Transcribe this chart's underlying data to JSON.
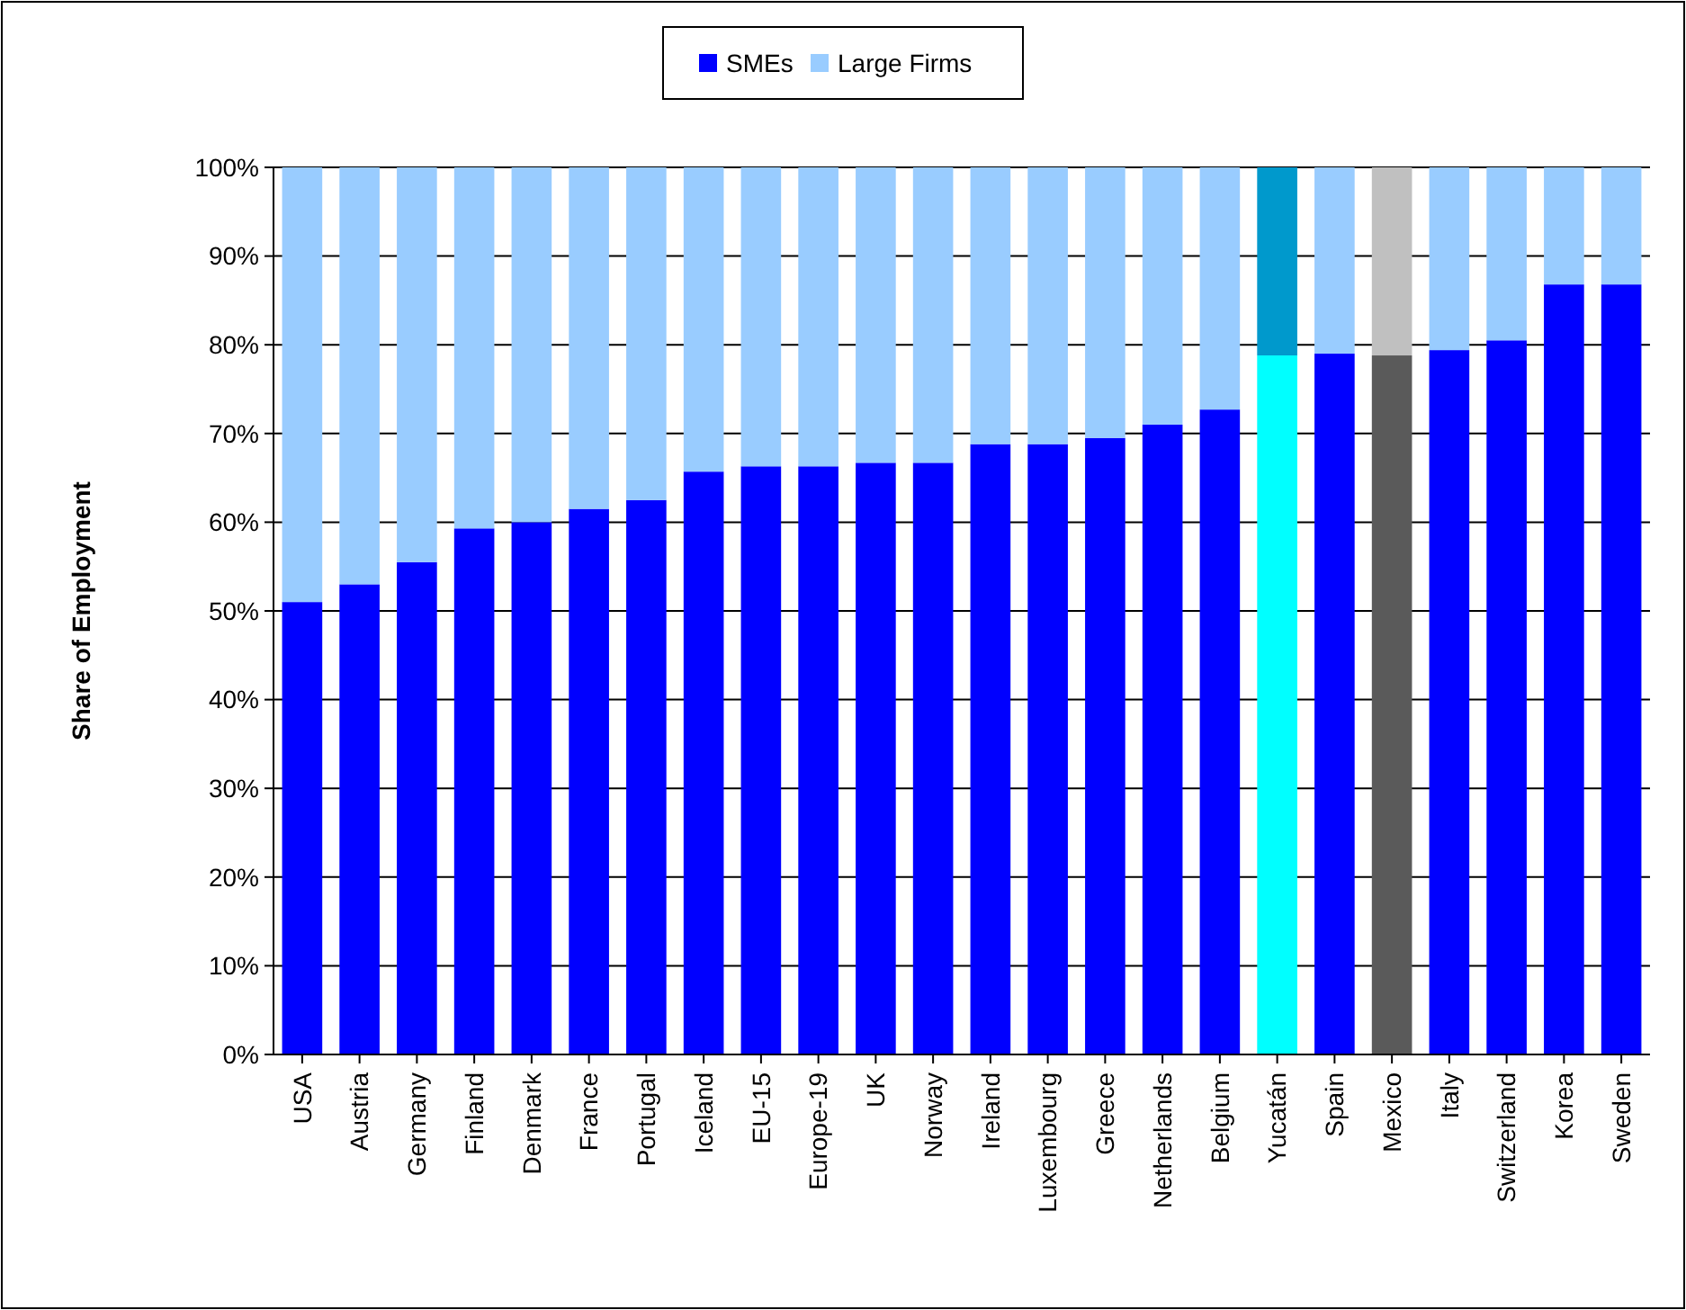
{
  "chart_data": {
    "type": "bar",
    "stacked": true,
    "ylabel": "Share of Employment",
    "categories": [
      "USA",
      "Austria",
      "Germany",
      "Finland",
      "Denmark",
      "France",
      "Portugal",
      "Iceland",
      "EU-15",
      "Europe-19",
      "UK",
      "Norway",
      "Ireland",
      "Luxembourg",
      "Greece",
      "Netherlands",
      "Belgium",
      "Yucatán",
      "Spain",
      "Mexico",
      "Italy",
      "Switzerland",
      "Korea",
      "Sweden"
    ],
    "series": [
      {
        "name": "SMEs",
        "color": "#0000ff",
        "colors": [
          "#0000ff",
          "#0000ff",
          "#0000ff",
          "#0000ff",
          "#0000ff",
          "#0000ff",
          "#0000ff",
          "#0000ff",
          "#0000ff",
          "#0000ff",
          "#0000ff",
          "#0000ff",
          "#0000ff",
          "#0000ff",
          "#0000ff",
          "#0000ff",
          "#0000ff",
          "#00ffff",
          "#0000ff",
          "#5a5a5a",
          "#0000ff",
          "#0000ff",
          "#0000ff",
          "#0000ff"
        ],
        "values": [
          51,
          53,
          55.5,
          59.3,
          60,
          61.5,
          62.5,
          65.7,
          66.3,
          66.3,
          66.7,
          66.7,
          68.8,
          68.8,
          69.5,
          71,
          72.7,
          78.8,
          79,
          78.8,
          79.4,
          80.5,
          86.8,
          86.8
        ]
      },
      {
        "name": "Large Firms",
        "color": "#99ccff",
        "colors": [
          "#99ccff",
          "#99ccff",
          "#99ccff",
          "#99ccff",
          "#99ccff",
          "#99ccff",
          "#99ccff",
          "#99ccff",
          "#99ccff",
          "#99ccff",
          "#99ccff",
          "#99ccff",
          "#99ccff",
          "#99ccff",
          "#99ccff",
          "#99ccff",
          "#99ccff",
          "#0099cc",
          "#99ccff",
          "#c0c0c0",
          "#99ccff",
          "#99ccff",
          "#99ccff",
          "#99ccff"
        ],
        "values": [
          49,
          47,
          44.5,
          40.7,
          40,
          38.5,
          37.5,
          34.3,
          33.7,
          33.7,
          33.3,
          33.3,
          31.2,
          31.2,
          30.5,
          29,
          27.3,
          21.2,
          21,
          21.2,
          20.6,
          19.5,
          13.2,
          13.2
        ]
      }
    ],
    "ylim": [
      0,
      100
    ],
    "yticks": [
      {
        "value": 0,
        "label": "0%"
      },
      {
        "value": 10,
        "label": "10%"
      },
      {
        "value": 20,
        "label": "20%"
      },
      {
        "value": 30,
        "label": "30%"
      },
      {
        "value": 40,
        "label": "40%"
      },
      {
        "value": 50,
        "label": "50%"
      },
      {
        "value": 60,
        "label": "60%"
      },
      {
        "value": 70,
        "label": "70%"
      },
      {
        "value": 80,
        "label": "80%"
      },
      {
        "value": 90,
        "label": "90%"
      },
      {
        "value": 100,
        "label": "100%"
      }
    ],
    "grid": "y",
    "legend": "top"
  }
}
